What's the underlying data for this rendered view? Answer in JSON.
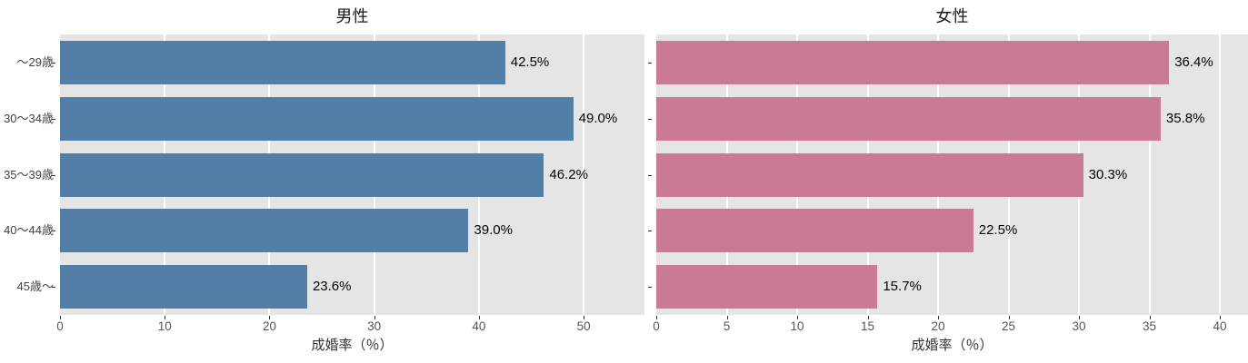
{
  "chart_data": [
    {
      "type": "bar",
      "orientation": "horizontal",
      "title": "男性",
      "xlabel": "成婚率（％）",
      "categories": [
        "～29歳",
        "30～34歳",
        "35～39歳",
        "40～44歳",
        "45歳～"
      ],
      "values": [
        42.5,
        49.0,
        46.2,
        39.0,
        23.6
      ],
      "bar_labels": [
        "42.5%",
        "49.0%",
        "46.2%",
        "39.0%",
        "23.6%"
      ],
      "xticks": [
        0,
        10,
        20,
        30,
        40,
        50
      ],
      "xlim": [
        0,
        55.8
      ],
      "bar_color": "#537EA5",
      "plot_bg": "#e5e5e5",
      "grid_color": "#ffffff",
      "show_category_labels": true,
      "legend": "none"
    },
    {
      "type": "bar",
      "orientation": "horizontal",
      "title": "女性",
      "xlabel": "成婚率（％）",
      "categories": [
        "～29歳",
        "30～34歳",
        "35～39歳",
        "40～44歳",
        "45歳～"
      ],
      "values": [
        36.4,
        35.8,
        30.3,
        22.5,
        15.7
      ],
      "bar_labels": [
        "36.4%",
        "35.8%",
        "30.3%",
        "22.5%",
        "15.7%"
      ],
      "xticks": [
        0,
        5,
        10,
        15,
        20,
        25,
        30,
        35,
        40
      ],
      "xlim": [
        0,
        42
      ],
      "bar_color": "#CB7A94",
      "plot_bg": "#e5e5e5",
      "grid_color": "#ffffff",
      "show_category_labels": false,
      "legend": "none"
    }
  ]
}
